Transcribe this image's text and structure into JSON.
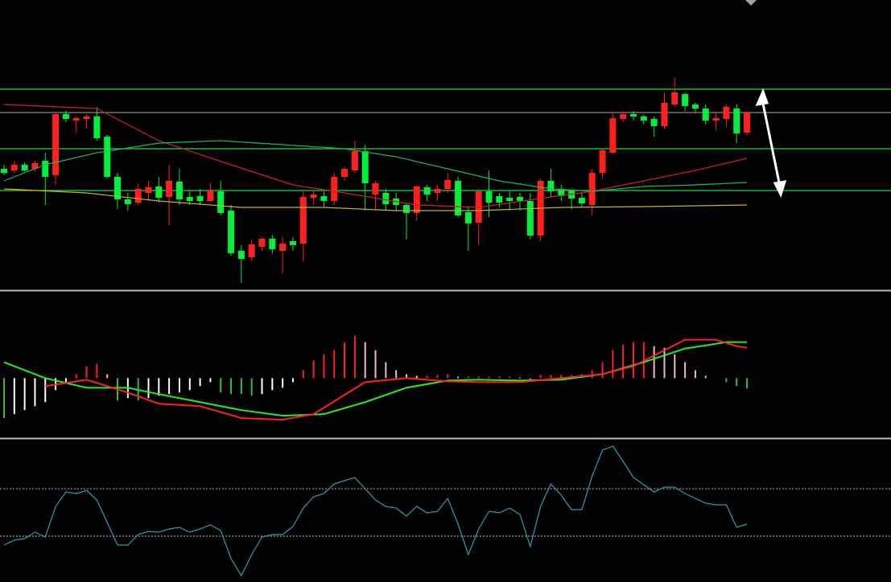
{
  "chart_data": [
    {
      "type": "candlestick",
      "open": [
        150,
        148,
        155,
        150,
        160,
        142,
        218,
        210,
        212,
        215,
        190,
        140,
        112,
        108,
        120,
        128,
        115,
        134,
        115,
        116,
        110,
        122,
        98,
        48,
        40,
        53,
        63,
        48,
        60,
        57,
        114,
        116,
        110,
        140,
        148,
        172,
        118,
        120,
        113,
        105,
        95,
        127,
        120,
        125,
        135,
        96,
        83,
        122,
        116,
        114,
        115,
        110,
        67,
        135,
        125,
        123,
        114,
        105,
        145,
        170,
        212,
        218,
        215,
        212,
        203,
        230,
        243,
        230,
        225,
        210,
        212,
        225,
        195
      ],
      "high": [
        155,
        160,
        158,
        160,
        170,
        220,
        222,
        215,
        218,
        227,
        192,
        145,
        120,
        132,
        135,
        140,
        155,
        150,
        122,
        125,
        132,
        135,
        105,
        55,
        62,
        65,
        68,
        65,
        65,
        122,
        122,
        122,
        145,
        153,
        185,
        180,
        135,
        125,
        120,
        108,
        130,
        130,
        130,
        145,
        140,
        102,
        122,
        148,
        120,
        122,
        120,
        120,
        138,
        150,
        130,
        125,
        120,
        150,
        175,
        220,
        220,
        222,
        218,
        215,
        245,
        263,
        245,
        232,
        230,
        220,
        230,
        230,
        220
      ],
      "low": [
        142,
        145,
        146,
        147,
        105,
        130,
        208,
        195,
        200,
        185,
        138,
        100,
        98,
        105,
        110,
        108,
        80,
        105,
        105,
        105,
        108,
        92,
        42,
        8,
        35,
        48,
        45,
        20,
        48,
        35,
        105,
        103,
        105,
        135,
        145,
        98,
        100,
        98,
        98,
        62,
        85,
        110,
        110,
        120,
        90,
        48,
        55,
        90,
        102,
        98,
        98,
        62,
        60,
        115,
        110,
        100,
        102,
        92,
        138,
        168,
        208,
        210,
        205,
        190,
        200,
        228,
        222,
        220,
        205,
        198,
        202,
        182,
        192
      ],
      "close": [
        145,
        155,
        148,
        157,
        140,
        218,
        212,
        213,
        215,
        188,
        140,
        112,
        106,
        125,
        127,
        114,
        135,
        112,
        110,
        110,
        123,
        95,
        45,
        38,
        56,
        63,
        50,
        57,
        55,
        115,
        118,
        110,
        140,
        150,
        172,
        132,
        132,
        106,
        105,
        95,
        128,
        118,
        125,
        136,
        92,
        82,
        122,
        108,
        108,
        110,
        110,
        67,
        135,
        122,
        116,
        113,
        107,
        145,
        173,
        213,
        218,
        215,
        210,
        203,
        232,
        245,
        228,
        225,
        210,
        213,
        227,
        194,
        220
      ],
      "up_color": "#ff1f1f",
      "down_color": "#00f03c",
      "ylim": [
        0,
        360
      ],
      "levels": [
        {
          "value": 249,
          "color": "#22dd22"
        },
        {
          "value": 220,
          "color": "#8a8a8a"
        },
        {
          "value": 175,
          "color": "#22dd22"
        },
        {
          "value": 123,
          "color": "#22dd22"
        }
      ],
      "series": [
        {
          "color": "#d42020",
          "x": [
            0,
            9,
            15,
            22,
            28,
            33,
            40,
            46,
            53,
            57,
            62,
            67,
            72
          ],
          "values": [
            230,
            225,
            185,
            155,
            130,
            120,
            105,
            102,
            115,
            122,
            135,
            148,
            163
          ]
        },
        {
          "color": "#1fb45a",
          "x": [
            0,
            4,
            9,
            15,
            21,
            27,
            33,
            38,
            43,
            48,
            53,
            57,
            62,
            67,
            72
          ],
          "values": [
            135,
            155,
            170,
            182,
            185,
            180,
            175,
            165,
            150,
            135,
            125,
            122,
            128,
            130,
            133
          ]
        },
        {
          "color": "#c8b428",
          "x": [
            0,
            8,
            15,
            23,
            31,
            38,
            46,
            54,
            62,
            72
          ],
          "values": [
            125,
            120,
            110,
            102,
            102,
            98,
            98,
            102,
            103,
            105
          ]
        }
      ]
    },
    {
      "type": "bar",
      "values": [
        -50,
        -45,
        -40,
        -35,
        -30,
        -15,
        -5,
        5,
        15,
        18,
        5,
        -28,
        -25,
        -28,
        -25,
        -22,
        -20,
        -18,
        -15,
        -10,
        -5,
        -18,
        -20,
        -20,
        -22,
        -20,
        -15,
        -12,
        -5,
        10,
        22,
        30,
        35,
        45,
        53,
        45,
        35,
        20,
        10,
        5,
        3,
        3,
        4,
        5,
        2,
        2,
        2,
        2,
        2,
        2,
        1,
        -3,
        4,
        4,
        4,
        4,
        5,
        10,
        20,
        35,
        42,
        45,
        45,
        40,
        38,
        30,
        20,
        10,
        3,
        0,
        -5,
        -10,
        -13
      ],
      "colors": {
        "up_rising": "#ff2020",
        "up_falling": "#f0b8c8",
        "down_falling": "#30c030",
        "down_rising": "#ffffff"
      },
      "ylim": [
        -75,
        108
      ],
      "series": [
        {
          "color": "#22ee22",
          "x": [
            0,
            4,
            8,
            12,
            15,
            19,
            23,
            27,
            31,
            35,
            39,
            43,
            46,
            50,
            54,
            58,
            62,
            66,
            70,
            72
          ],
          "values": [
            20,
            0,
            -12,
            -12,
            -20,
            -30,
            -40,
            -47,
            -45,
            -30,
            -12,
            -3,
            -2,
            -3,
            -2,
            5,
            20,
            37,
            45,
            45
          ]
        },
        {
          "color": "#ff2020",
          "x": [
            4,
            8,
            12,
            15,
            19,
            23,
            27,
            30,
            35,
            39,
            43,
            46,
            50,
            54,
            58,
            61,
            66,
            69,
            71,
            72
          ],
          "values": [
            -10,
            -2,
            -18,
            -32,
            -35,
            -50,
            -52,
            -45,
            -5,
            0,
            -4,
            -5,
            -5,
            0,
            5,
            15,
            48,
            48,
            40,
            38
          ]
        }
      ]
    },
    {
      "type": "line",
      "values": [
        46,
        52,
        54,
        62,
        56,
        94,
        112,
        110,
        114,
        102,
        74,
        46,
        46,
        59,
        63,
        62,
        66,
        68,
        62,
        66,
        71,
        64,
        29,
        8,
        34,
        56,
        59,
        59,
        69,
        92,
        106,
        110,
        122,
        126,
        130,
        116,
        102,
        94,
        92,
        82,
        94,
        86,
        88,
        104,
        72,
        34,
        66,
        88,
        86,
        92,
        84,
        44,
        94,
        122,
        108,
        90,
        90,
        132,
        164,
        169,
        150,
        130,
        121,
        112,
        118,
        118,
        110,
        104,
        98,
        96,
        96,
        68,
        72
      ],
      "color": "#2a9fb0",
      "ylim": [
        0,
        177
      ],
      "levels": [
        {
          "value": 116,
          "color": "#9a9a9a"
        },
        {
          "value": 57,
          "color": "#9a9a9a"
        }
      ]
    }
  ]
}
